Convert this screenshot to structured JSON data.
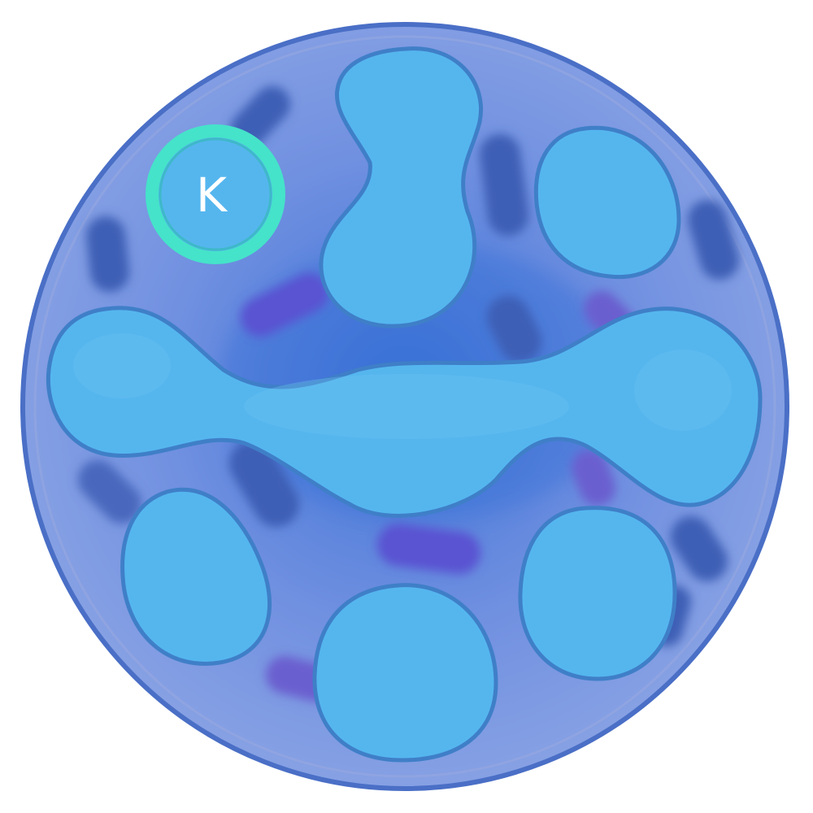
{
  "map": {
    "colors": {
      "disc_fill": "#7f9ee2",
      "disc_edge": "#4d72c9",
      "land_fill": "#55b6ee",
      "land_edge": "#3f7fc8",
      "channel_deep": "#3f62b8",
      "channel_violet": "#5a52d2",
      "marker_ring": "#45e3c9"
    },
    "marker": {
      "letter": "K",
      "icon": "player-position-marker"
    }
  }
}
